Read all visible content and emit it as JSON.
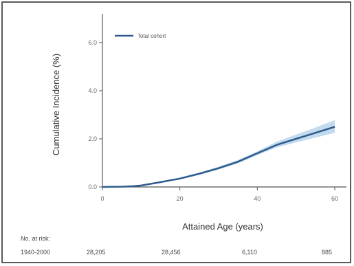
{
  "chart_data": {
    "type": "line",
    "ylabel": "Cumulative Incidence (%)",
    "xlabel": "Attained Age (years)",
    "xlim": [
      0,
      60
    ],
    "ylim": [
      0,
      7.2
    ],
    "x_ticks": [
      0,
      20,
      40,
      60
    ],
    "y_ticks": [
      0.0,
      2.0,
      4.0,
      6.0
    ],
    "y_tick_labels": [
      "0.0",
      "2.0",
      "4.0",
      "6.0"
    ],
    "grid": false,
    "legend_position": "top-left",
    "series": [
      {
        "name": "Total cohort",
        "color": "#2f5b8c",
        "band_color": "#a9cce8",
        "x": [
          0,
          5,
          8,
          10,
          15,
          20,
          25,
          30,
          35,
          40,
          45,
          50,
          55,
          60
        ],
        "y": [
          0,
          0.01,
          0.03,
          0.06,
          0.2,
          0.35,
          0.55,
          0.78,
          1.05,
          1.4,
          1.75,
          2.0,
          2.25,
          2.5
        ],
        "ci_low": [
          0,
          0.0,
          0.02,
          0.04,
          0.17,
          0.31,
          0.5,
          0.72,
          0.98,
          1.32,
          1.64,
          1.85,
          2.05,
          2.25
        ],
        "ci_high": [
          0,
          0.02,
          0.04,
          0.08,
          0.23,
          0.39,
          0.6,
          0.84,
          1.12,
          1.48,
          1.88,
          2.18,
          2.47,
          2.78
        ]
      }
    ]
  },
  "risk_table": {
    "title": "No. at risk:",
    "row_label": "1940-2000",
    "counts": [
      "28,205",
      "28,456",
      "6,110",
      "885"
    ]
  }
}
